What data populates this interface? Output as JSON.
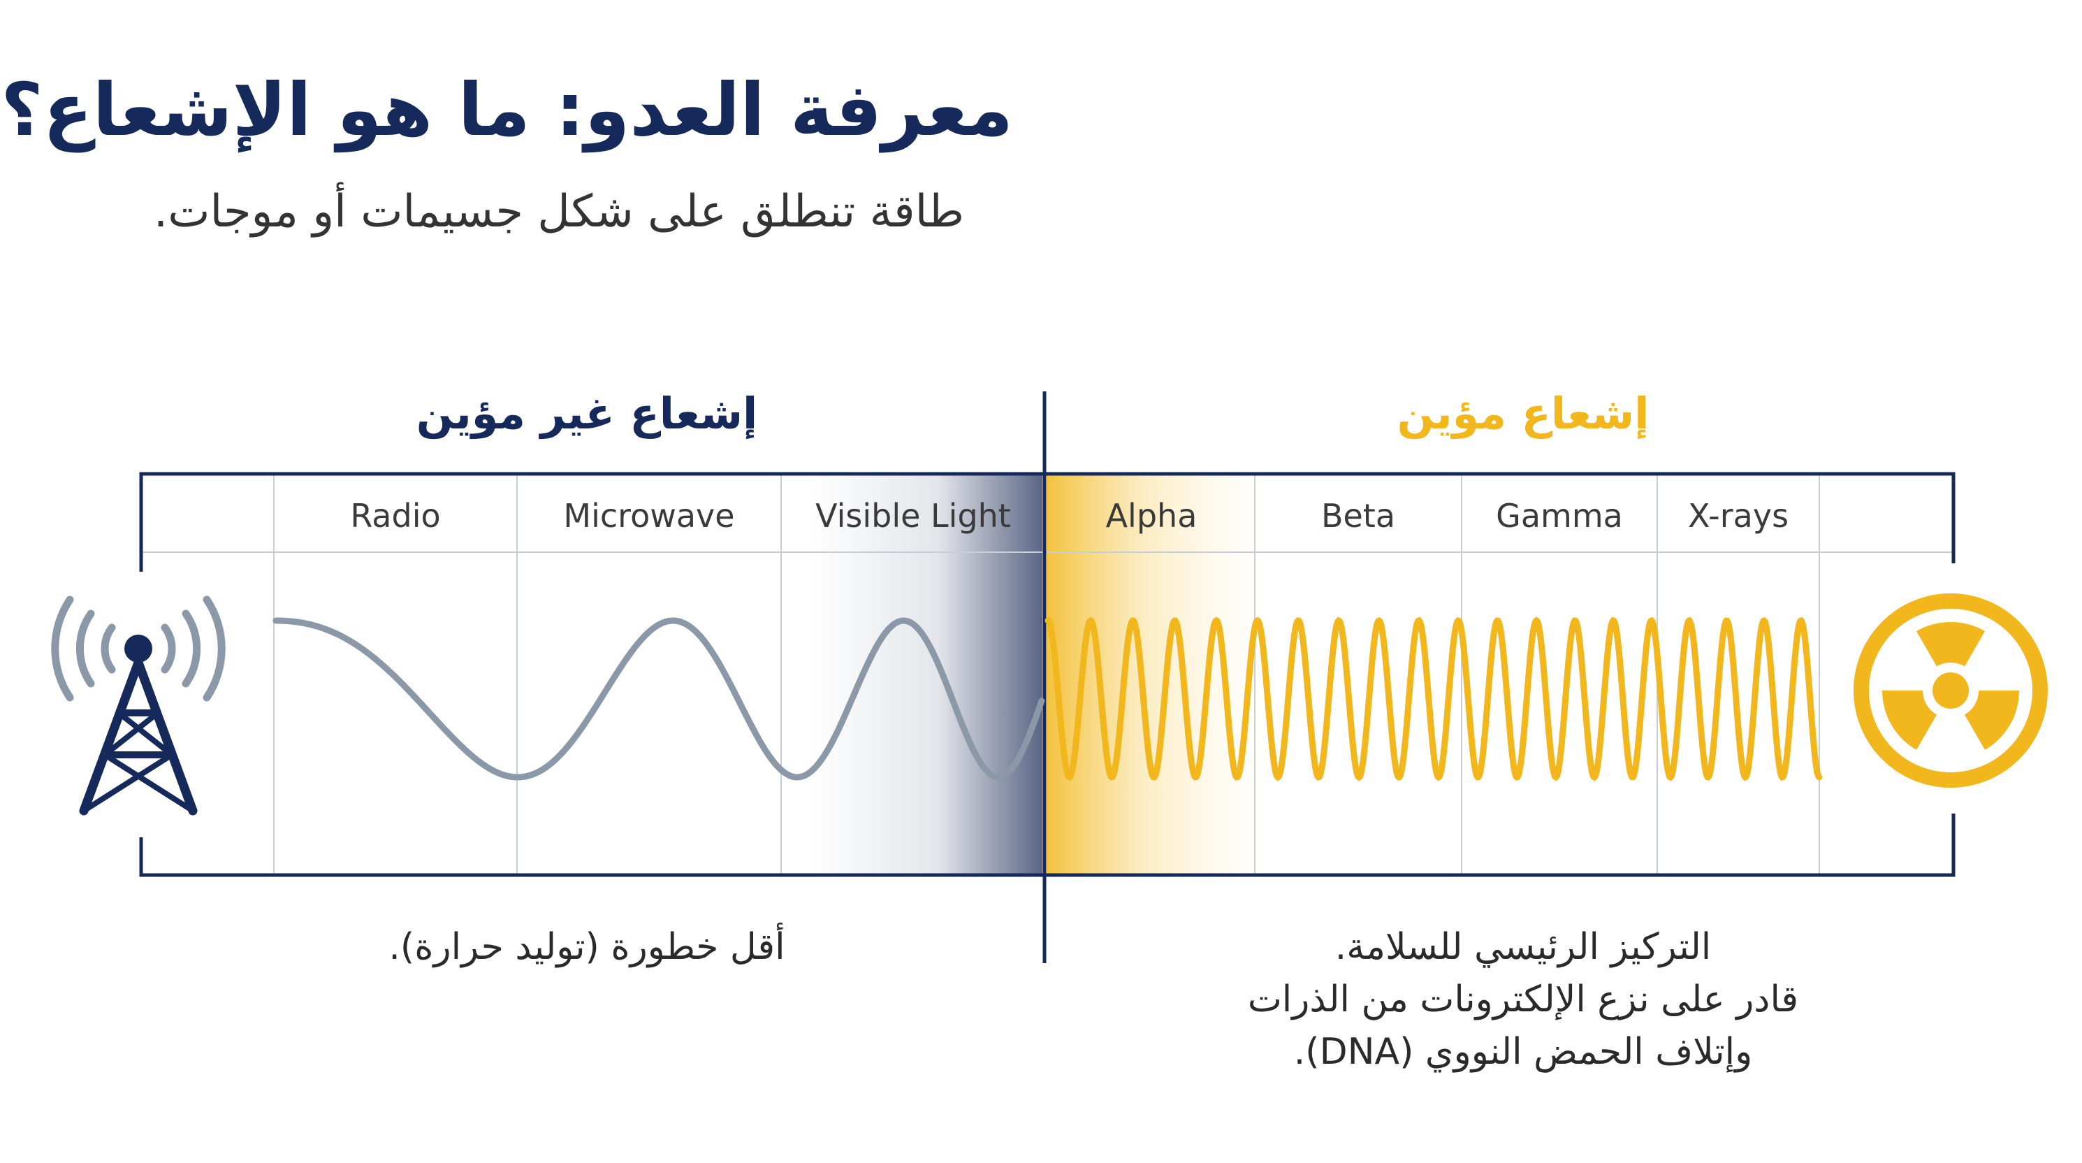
{
  "title": "معرفة العدو: ما هو الإشعاع؟",
  "subtitle": "طاقة تنطلق على شكل جسيمات أو موجات.",
  "non_ionizing": {
    "heading": "إشعاع غير مؤين",
    "bands": [
      "Radio",
      "Microwave",
      "Visible Light"
    ],
    "note": "أقل خطورة (توليد حرارة)."
  },
  "ionizing": {
    "heading": "إشعاع مؤين",
    "bands": [
      "Alpha",
      "Beta",
      "Gamma",
      "X-rays"
    ],
    "note_lines": [
      "التركيز الرئيسي للسلامة.",
      "قادر على نزع الإلكترونات من الذرات",
      "وإتلاف الحمض النووي (DNA)."
    ]
  },
  "icons": {
    "left": "radio-tower-icon",
    "right": "radiation-hazard-icon"
  },
  "colors": {
    "navy": "#15295a",
    "gold": "#f2b71c",
    "wave_gray": "#8a98a8",
    "grid": "#c8cdd6"
  }
}
